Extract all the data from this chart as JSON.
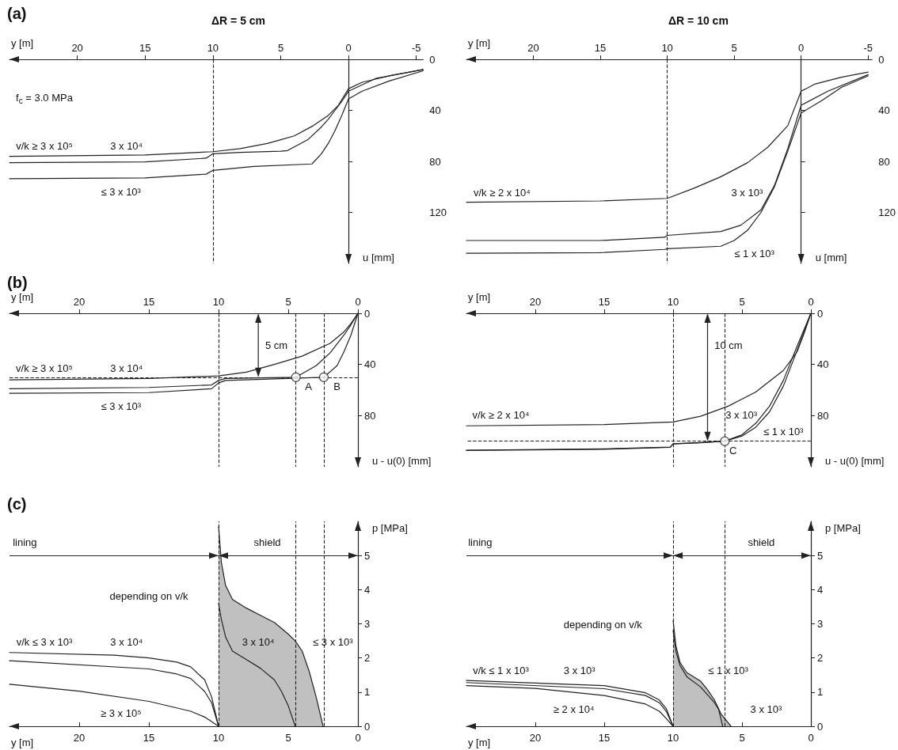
{
  "chart_data": [
    {
      "type": "line",
      "title": "(a)",
      "subtitle": "ΔR = 5 cm",
      "xlabel": "y [m]",
      "ylabel": "u [mm]",
      "xlim": [
        25,
        -5.5
      ],
      "ylim": [
        160,
        0
      ],
      "xticks": [
        20,
        15,
        10,
        5,
        0,
        -5
      ],
      "yticks": [
        0,
        40,
        80,
        120
      ],
      "color": "#222222",
      "series": [
        {
          "x": [
            25,
            15,
            10,
            8,
            6,
            5,
            4,
            2.6,
            1.5,
            0.75,
            0,
            -1,
            -3,
            -5.5
          ],
          "values": [
            76,
            75,
            72.4,
            70,
            66,
            63,
            60,
            52,
            44,
            36,
            23,
            18,
            13,
            8
          ]
        },
        {
          "x": [
            25,
            15,
            10.5,
            10,
            8,
            5,
            4.5,
            3,
            2,
            1.5,
            1,
            0.5,
            0,
            -2,
            -5.5
          ],
          "values": [
            81,
            80.4,
            77.5,
            74,
            73,
            72,
            71.5,
            63,
            53,
            47,
            40,
            33,
            25,
            15,
            8
          ]
        },
        {
          "x": [
            25,
            15,
            10.5,
            10,
            7,
            2.7,
            2,
            1.5,
            1,
            0.5,
            0,
            -1,
            -3,
            -5.5
          ],
          "values": [
            93.6,
            93,
            90,
            87,
            84,
            82,
            74,
            66,
            56,
            44,
            31,
            25,
            17,
            9
          ]
        }
      ],
      "ref_lines": [
        {
          "axis": "x",
          "value": 10,
          "line_style": "dashed"
        }
      ],
      "annotations": [
        "f$_{c}$ = 3.0 MPa",
        "v/k ≥ 3 x 10⁵",
        "3 x 10⁴",
        "≤ 3 x 10³"
      ]
    },
    {
      "type": "line",
      "subtitle": "ΔR = 10 cm",
      "xlabel": "y [m]",
      "ylabel": "u [mm]",
      "xlim": [
        25,
        -5.3
      ],
      "ylim": [
        160,
        0
      ],
      "xticks": [
        20,
        15,
        10,
        5,
        0,
        -5
      ],
      "yticks": [
        0,
        40,
        80,
        120
      ],
      "color": "#222222",
      "series": [
        {
          "x": [
            25,
            15,
            10,
            8,
            6,
            4,
            2.5,
            1,
            0,
            -1,
            -3,
            -5
          ],
          "values": [
            112,
            111,
            109,
            101,
            92,
            81,
            69,
            52,
            25,
            19.5,
            14,
            10
          ]
        },
        {
          "x": [
            25,
            15,
            10.2,
            10,
            6,
            4.5,
            3,
            2,
            1,
            0,
            -2,
            -5
          ],
          "values": [
            142,
            142,
            139.5,
            138,
            135,
            130,
            118,
            99,
            70,
            36,
            25,
            12
          ]
        },
        {
          "x": [
            25,
            15,
            10.2,
            10,
            6,
            5,
            4,
            3,
            2,
            1,
            0,
            -1.6,
            -3,
            -5
          ],
          "values": [
            152,
            151.5,
            149,
            148.5,
            146.5,
            142,
            134,
            120,
            100,
            72,
            42,
            32,
            22,
            13
          ]
        }
      ],
      "ref_lines": [
        {
          "axis": "x",
          "value": 10,
          "line_style": "dashed"
        }
      ],
      "annotations": [
        "v/k ≥ 2 x 10⁴",
        "3 x 10³",
        "≤ 1 x 10³"
      ]
    },
    {
      "type": "line",
      "title": "(b)",
      "xlabel": "y [m]",
      "ylabel": "u - u(0) [mm]",
      "xlim": [
        25,
        0
      ],
      "ylim": [
        120,
        0
      ],
      "xticks": [
        20,
        15,
        10,
        5,
        0
      ],
      "yticks": [
        0,
        40,
        80
      ],
      "color": "#222222",
      "series": [
        {
          "x": [
            25,
            15,
            10,
            8,
            6,
            4,
            2,
            1,
            0.5,
            0
          ],
          "values": [
            52,
            51,
            49,
            46,
            40,
            33.5,
            23.5,
            14.5,
            8,
            0
          ]
        },
        {
          "x": [
            25,
            15,
            10.5,
            10,
            9.5,
            7,
            4.45,
            3,
            2,
            1,
            0.5,
            0
          ],
          "values": [
            59,
            58,
            56,
            52.5,
            51,
            50.5,
            50,
            41,
            31,
            17,
            9,
            0
          ]
        },
        {
          "x": [
            25,
            15,
            10.5,
            10,
            9.5,
            5,
            2.45,
            1.5,
            1,
            0.5,
            0
          ],
          "values": [
            62.5,
            62,
            59,
            54.5,
            52.5,
            51,
            50,
            41,
            30,
            17,
            0
          ]
        },
        {
          "type": "scatter",
          "marker": "circle",
          "color": "#ffffff",
          "x": [
            4.45,
            2.45
          ],
          "values": [
            50,
            50
          ]
        }
      ],
      "ref_lines": [
        {
          "axis": "x",
          "value": 10,
          "line_style": "dashed"
        },
        {
          "axis": "x",
          "value": 4.45,
          "line_style": "dashed"
        },
        {
          "axis": "x",
          "value": 2.45,
          "line_style": "dashed"
        },
        {
          "axis": "y",
          "value": 50,
          "line_style": "dashed"
        }
      ],
      "annotations": [
        "v/k ≥ 3 x 10⁵",
        "3 x 10⁴",
        "≤ 3 x 10³",
        "A",
        "B",
        "5 cm"
      ]
    },
    {
      "type": "line",
      "xlabel": "y [m]",
      "ylabel": "u - u(0) [mm]",
      "xlim": [
        25,
        0
      ],
      "ylim": [
        120,
        0
      ],
      "xticks": [
        20,
        15,
        10,
        5,
        0
      ],
      "yticks": [
        0,
        40,
        80
      ],
      "color": "#222222",
      "series": [
        {
          "x": [
            25,
            15,
            10,
            8,
            6,
            4,
            2,
            1,
            0.5,
            0
          ],
          "values": [
            88,
            87,
            85,
            80.5,
            72.6,
            61.5,
            44.7,
            30,
            16,
            0
          ]
        },
        {
          "x": [
            25,
            15,
            10.2,
            10,
            8,
            6.25,
            5,
            4,
            3,
            2,
            1,
            0
          ],
          "values": [
            107,
            106,
            104.6,
            102,
            101,
            100,
            95,
            86,
            72.6,
            52.5,
            25.7,
            0
          ]
        },
        {
          "x": [
            25,
            15,
            10.2,
            10,
            8,
            6.25,
            5,
            4,
            3,
            2,
            1,
            0
          ],
          "values": [
            107.3,
            106.3,
            104.8,
            102.2,
            101.2,
            100,
            96,
            89,
            77,
            57,
            29,
            0
          ]
        },
        {
          "type": "scatter",
          "marker": "circle",
          "color": "#ffffff",
          "x": [
            6.25
          ],
          "values": [
            100
          ]
        }
      ],
      "ref_lines": [
        {
          "axis": "x",
          "value": 10,
          "line_style": "dashed"
        },
        {
          "axis": "x",
          "value": 6.25,
          "line_style": "dashed"
        },
        {
          "axis": "y",
          "value": 100,
          "line_style": "dashed"
        }
      ],
      "annotations": [
        "v/k ≥ 2 x 10⁴",
        "3 x 10³",
        "≤ 1 x 10³",
        "C",
        "10 cm"
      ]
    },
    {
      "type": "line",
      "title": "(c)",
      "xlabel": "y [m]",
      "ylabel": "p [MPa]",
      "xlim": [
        25,
        0
      ],
      "ylim": [
        0,
        6
      ],
      "xticks": [
        20,
        15,
        10,
        5,
        0
      ],
      "yticks": [
        0,
        1,
        2,
        3,
        4,
        5
      ],
      "color": "#222222",
      "series": [
        {
          "type": "area",
          "color": "#c0c0c0",
          "x": [
            10,
            9.8,
            9.5,
            9,
            8,
            7,
            6,
            5,
            4.5,
            4,
            3.5,
            3,
            2.5
          ],
          "values": [
            5.86,
            4.8,
            4.13,
            3.71,
            3.46,
            3.25,
            3.04,
            2.7,
            2.5,
            2.2,
            1.61,
            0.86,
            0
          ]
        },
        {
          "x": [
            10,
            9.8,
            9.5,
            9,
            8,
            7,
            6,
            5.5,
            5,
            4.5
          ],
          "values": [
            3.6,
            3.13,
            2.62,
            2.2,
            1.95,
            1.7,
            1.36,
            1.03,
            0.6,
            0
          ]
        },
        {
          "x": [
            25,
            17.5,
            15,
            13,
            12,
            11,
            10.5,
            10
          ],
          "values": [
            2.16,
            2.08,
            2,
            1.88,
            1.74,
            1.36,
            0.86,
            0
          ]
        },
        {
          "x": [
            25,
            15,
            13,
            12,
            11,
            10.5,
            10
          ],
          "values": [
            1.92,
            1.68,
            1.53,
            1.4,
            1.02,
            0.69,
            0
          ]
        },
        {
          "x": [
            25,
            20,
            15,
            12,
            11,
            10
          ],
          "values": [
            1.23,
            1.03,
            0.73,
            0.44,
            0.27,
            0
          ]
        }
      ],
      "ref_lines": [
        {
          "axis": "x",
          "value": 10,
          "line_style": "dashed"
        },
        {
          "axis": "x",
          "value": 4.45,
          "line_style": "dashed"
        },
        {
          "axis": "x",
          "value": 2.45,
          "line_style": "dashed"
        },
        {
          "axis": "y",
          "value": 5,
          "line_style": "solid"
        }
      ],
      "annotations": [
        "lining",
        "shield",
        "depending on v/k",
        "v/k ≤ 3 x 10³",
        "3 x 10⁴",
        "≥ 3 x 10⁵",
        "3 x 10⁴",
        "≤ 3 x 10³"
      ]
    },
    {
      "type": "line",
      "xlabel": "y [m]",
      "ylabel": "p [MPa]",
      "xlim": [
        25,
        0
      ],
      "ylim": [
        0,
        6
      ],
      "xticks": [
        20,
        15,
        10,
        5,
        0
      ],
      "yticks": [
        0,
        1,
        2,
        3,
        4,
        5
      ],
      "color": "#222222",
      "series": [
        {
          "type": "area",
          "color": "#c0c0c0",
          "x": [
            10,
            9.8,
            9.5,
            9,
            8,
            7.5,
            7,
            6.5,
            6,
            5.8
          ],
          "values": [
            3.1,
            2.37,
            1.87,
            1.57,
            1.32,
            1.07,
            0.77,
            0.35,
            0.1,
            0
          ]
        },
        {
          "x": [
            10,
            9.8,
            9.5,
            9,
            8,
            7,
            6.7,
            6.4
          ],
          "values": [
            2.8,
            2.2,
            1.78,
            1.45,
            1.15,
            0.69,
            0.5,
            0
          ]
        },
        {
          "x": [
            25,
            15,
            12,
            11,
            10.5,
            10
          ],
          "values": [
            1.34,
            1.19,
            0.98,
            0.77,
            0.52,
            0
          ]
        },
        {
          "x": [
            25,
            15,
            12,
            11,
            10.5,
            10
          ],
          "values": [
            1.28,
            1.1,
            0.9,
            0.69,
            0.44,
            0
          ]
        },
        {
          "x": [
            25,
            20,
            15,
            12,
            11,
            10.5,
            10
          ],
          "values": [
            1.19,
            1.11,
            0.9,
            0.65,
            0.44,
            0.23,
            0
          ]
        }
      ],
      "ref_lines": [
        {
          "axis": "x",
          "value": 10,
          "line_style": "dashed"
        },
        {
          "axis": "x",
          "value": 6.25,
          "line_style": "dashed"
        },
        {
          "axis": "y",
          "value": 5,
          "line_style": "solid"
        }
      ],
      "annotations": [
        "lining",
        "shield",
        "depending on v/k",
        "v/k ≤ 1 x 10³",
        "3 x 10³",
        "≥ 2 x 10⁴",
        "≤ 1 x 10³",
        "3 x 10³"
      ]
    }
  ]
}
